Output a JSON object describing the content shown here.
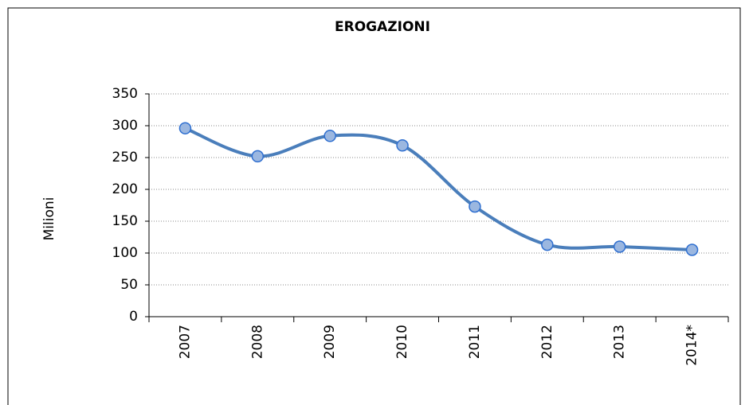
{
  "chart_data": {
    "type": "line",
    "title": "EROGAZIONI",
    "y_label": "Milioni",
    "categories": [
      "2007",
      "2008",
      "2009",
      "2010",
      "2011",
      "2012",
      "2013",
      "2014*"
    ],
    "values": [
      296,
      252,
      284,
      269,
      173,
      113,
      110,
      105
    ],
    "color": "#4a7ebb",
    "marker_fill": "#9bb7e0",
    "marker_stroke": "#2f6fd0",
    "smooth": true,
    "ylim": [
      0,
      350
    ],
    "yticks": [
      0,
      50,
      100,
      150,
      200,
      250,
      300,
      350
    ],
    "grid": true
  }
}
